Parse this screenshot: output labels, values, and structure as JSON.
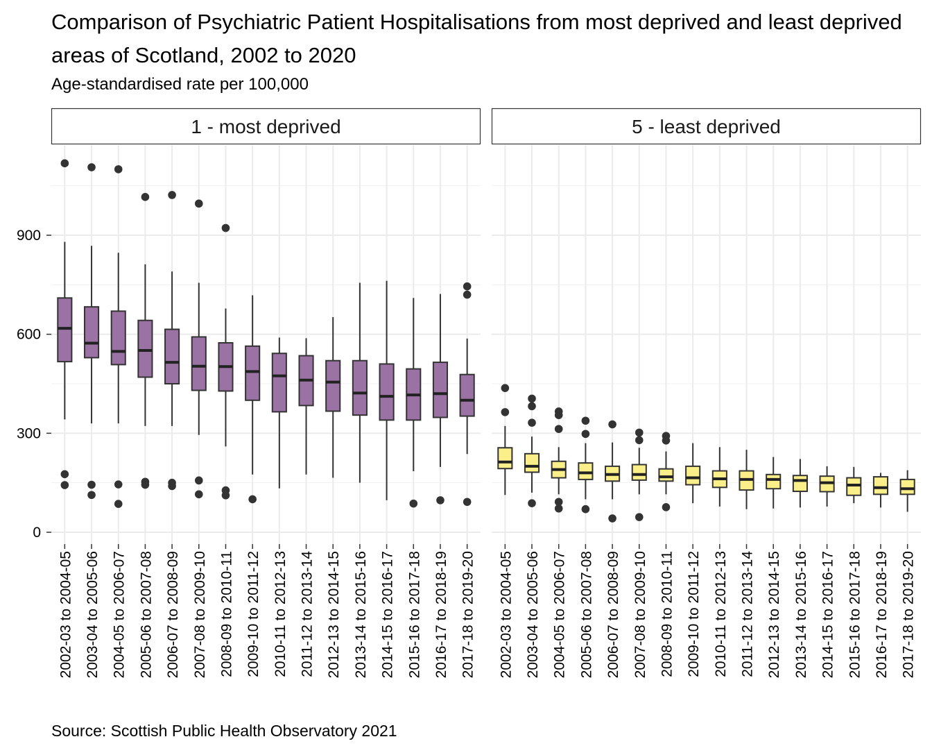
{
  "chart_data": {
    "type": "boxplot",
    "title": "Comparison of Psychiatric Patient Hospitalisations from most deprived and least deprived areas of Scotland, 2002 to 2020",
    "subtitle": "Age-standardised rate per 100,000",
    "caption": "Source: Scottish Public Health Observatory 2021",
    "xlabel": "",
    "ylabel": "",
    "ylim": [
      -30,
      1175
    ],
    "yticks": [
      0,
      300,
      600,
      900
    ],
    "grid": true,
    "legend": "none",
    "categories": [
      "2002-03 to 2004-05",
      "2003-04 to 2005-06",
      "2004-05 to 2006-07",
      "2005-06 to 2007-08",
      "2006-07 to 2008-09",
      "2007-08 to 2009-10",
      "2008-09 to 2010-11",
      "2009-10 to 2011-12",
      "2010-11 to 2012-13",
      "2011-12 to 2013-14",
      "2012-13 to 2014-15",
      "2013-14 to 2015-16",
      "2014-15 to 2016-17",
      "2015-16 to 2017-18",
      "2016-17 to 2018-19",
      "2017-18 to 2019-20"
    ],
    "panels": [
      {
        "label": "1 - most deprived",
        "fill": "#9b72a4",
        "boxes": [
          {
            "min": 342,
            "q1": 517,
            "median": 618,
            "q3": 710,
            "max": 880,
            "outliers": [
              1118,
              176,
              143
            ]
          },
          {
            "min": 330,
            "q1": 529,
            "median": 573,
            "q3": 683,
            "max": 868,
            "outliers": [
              1106,
              144,
              113
            ]
          },
          {
            "min": 330,
            "q1": 508,
            "median": 548,
            "q3": 670,
            "max": 847,
            "outliers": [
              1100,
              145,
              86
            ]
          },
          {
            "min": 322,
            "q1": 470,
            "median": 551,
            "q3": 642,
            "max": 812,
            "outliers": [
              1016,
              153,
              144
            ]
          },
          {
            "min": 322,
            "q1": 450,
            "median": 515,
            "q3": 615,
            "max": 790,
            "outliers": [
              1022,
              150,
              140
            ]
          },
          {
            "min": 295,
            "q1": 430,
            "median": 503,
            "q3": 592,
            "max": 756,
            "outliers": [
              996,
              157,
              115
            ]
          },
          {
            "min": 260,
            "q1": 428,
            "median": 502,
            "q3": 574,
            "max": 678,
            "outliers": [
              922,
              127,
              112
            ]
          },
          {
            "min": 175,
            "q1": 400,
            "median": 487,
            "q3": 564,
            "max": 718,
            "outliers": [
              100
            ]
          },
          {
            "min": 133,
            "q1": 365,
            "median": 474,
            "q3": 542,
            "max": 590,
            "outliers": []
          },
          {
            "min": 175,
            "q1": 384,
            "median": 461,
            "q3": 535,
            "max": 588,
            "outliers": []
          },
          {
            "min": 165,
            "q1": 367,
            "median": 455,
            "q3": 520,
            "max": 652,
            "outliers": []
          },
          {
            "min": 150,
            "q1": 355,
            "median": 422,
            "q3": 520,
            "max": 756,
            "outliers": []
          },
          {
            "min": 97,
            "q1": 340,
            "median": 412,
            "q3": 510,
            "max": 762,
            "outliers": []
          },
          {
            "min": 185,
            "q1": 340,
            "median": 416,
            "q3": 495,
            "max": 710,
            "outliers": [
              87
            ]
          },
          {
            "min": 198,
            "q1": 348,
            "median": 420,
            "q3": 515,
            "max": 722,
            "outliers": [
              97
            ]
          },
          {
            "min": 237,
            "q1": 352,
            "median": 400,
            "q3": 478,
            "max": 587,
            "outliers": [
              745,
              720,
              92
            ]
          }
        ]
      },
      {
        "label": "5 - least deprived",
        "fill": "#fbef8a",
        "boxes": [
          {
            "min": 113,
            "q1": 193,
            "median": 213,
            "q3": 256,
            "max": 322,
            "outliers": [
              437,
              364
            ]
          },
          {
            "min": 120,
            "q1": 182,
            "median": 200,
            "q3": 238,
            "max": 290,
            "outliers": [
              405,
              382,
              332,
              88
            ]
          },
          {
            "min": 115,
            "q1": 165,
            "median": 190,
            "q3": 215,
            "max": 258,
            "outliers": [
              366,
              355,
              313,
              92,
              72
            ]
          },
          {
            "min": 100,
            "q1": 160,
            "median": 180,
            "q3": 210,
            "max": 270,
            "outliers": [
              338,
              298,
              70
            ]
          },
          {
            "min": 100,
            "q1": 155,
            "median": 175,
            "q3": 200,
            "max": 272,
            "outliers": [
              327,
              42
            ]
          },
          {
            "min": 115,
            "q1": 158,
            "median": 175,
            "q3": 205,
            "max": 256,
            "outliers": [
              302,
              279,
              46
            ]
          },
          {
            "min": 115,
            "q1": 155,
            "median": 168,
            "q3": 192,
            "max": 245,
            "outliers": [
              292,
              278,
              76
            ]
          },
          {
            "min": 88,
            "q1": 144,
            "median": 165,
            "q3": 200,
            "max": 270,
            "outliers": []
          },
          {
            "min": 78,
            "q1": 136,
            "median": 162,
            "q3": 186,
            "max": 258,
            "outliers": []
          },
          {
            "min": 70,
            "q1": 128,
            "median": 160,
            "q3": 186,
            "max": 250,
            "outliers": []
          },
          {
            "min": 72,
            "q1": 132,
            "median": 160,
            "q3": 175,
            "max": 228,
            "outliers": []
          },
          {
            "min": 75,
            "q1": 124,
            "median": 157,
            "q3": 172,
            "max": 222,
            "outliers": []
          },
          {
            "min": 78,
            "q1": 123,
            "median": 150,
            "q3": 170,
            "max": 200,
            "outliers": []
          },
          {
            "min": 88,
            "q1": 112,
            "median": 143,
            "q3": 165,
            "max": 198,
            "outliers": []
          },
          {
            "min": 75,
            "q1": 115,
            "median": 135,
            "q3": 168,
            "max": 180,
            "outliers": []
          },
          {
            "min": 62,
            "q1": 115,
            "median": 132,
            "q3": 160,
            "max": 188,
            "outliers": []
          }
        ]
      }
    ]
  }
}
